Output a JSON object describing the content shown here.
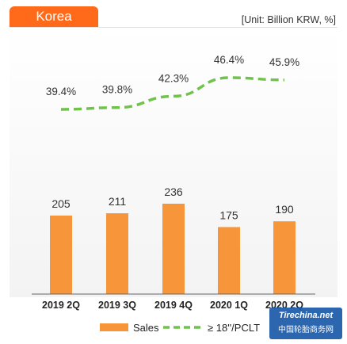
{
  "header": {
    "tab_label": "Korea",
    "unit": "[Unit: Billion KRW, %]",
    "accent_color": "#ff6a1a"
  },
  "chart_data": {
    "type": "bar",
    "categories": [
      "2019 2Q",
      "2019 3Q",
      "2019 4Q",
      "2020 1Q",
      "2020 2Q"
    ],
    "series": [
      {
        "name": "Sales",
        "type": "bar",
        "values": [
          205,
          211,
          236,
          175,
          190
        ],
        "color": "#f7953b"
      },
      {
        "name": "≥ 18''/PCLT",
        "type": "line",
        "style": "dashed",
        "values": [
          39.4,
          39.8,
          42.3,
          46.4,
          45.9
        ],
        "labels": [
          "39.4%",
          "39.8%",
          "42.3%",
          "46.4%",
          "45.9%"
        ],
        "color": "#6fc34a"
      }
    ],
    "legend": {
      "position": "bottom"
    }
  },
  "watermark": {
    "top": "Tirechina.net",
    "bottom": "中国轮胎商务网"
  }
}
